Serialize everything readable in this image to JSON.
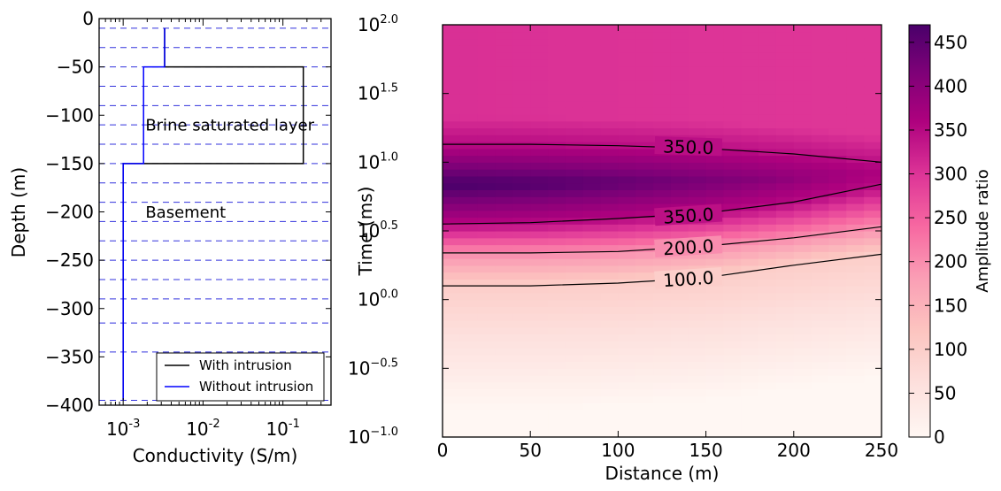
{
  "chart_data": [
    {
      "type": "line",
      "xlabel": "Conductivity (S/m)",
      "ylabel": "Depth (m)",
      "xscale": "log",
      "xlim": [
        0.0005,
        0.4
      ],
      "ylim": [
        -400,
        0
      ],
      "x_ticks": [
        {
          "value": 0.001,
          "base": "10",
          "exp": "-3"
        },
        {
          "value": 0.01,
          "base": "10",
          "exp": "-2"
        },
        {
          "value": 0.1,
          "base": "10",
          "exp": "-1"
        }
      ],
      "y_ticks": [
        0,
        -50,
        -100,
        -150,
        -200,
        -250,
        -300,
        -350,
        -400
      ],
      "y_tick_labels": [
        "0",
        "−50",
        "−100",
        "−150",
        "−200",
        "−250",
        "−300",
        "−350",
        "−400"
      ],
      "layer_interfaces": [
        -10,
        -30,
        -50,
        -70,
        -90,
        -110,
        -130,
        -150,
        -170,
        -190,
        -210,
        -230,
        -250,
        -270,
        -290,
        -315,
        -345,
        -395
      ],
      "annotations": [
        {
          "text": "Brine saturated layer",
          "x": 0.0019,
          "y": -105
        },
        {
          "text": "Basement",
          "x": 0.0019,
          "y": -195
        }
      ],
      "legend_position": "lower-right",
      "series": [
        {
          "name": "With intrusion",
          "color": "#000000",
          "x": [
            0.0033,
            0.0033,
            0.0033,
            0.18,
            0.18,
            0.001,
            0.001,
            0.001
          ],
          "y": [
            -10,
            -50,
            -50,
            -50,
            -150,
            -150,
            -150,
            -395
          ]
        },
        {
          "name": "Without intrusion",
          "color": "#0000ff",
          "x": [
            0.0033,
            0.0033,
            0.0018,
            0.0018,
            0.001,
            0.001
          ],
          "y": [
            -10,
            -50,
            -50,
            -150,
            -150,
            -395
          ]
        }
      ]
    },
    {
      "type": "heatmap",
      "xlabel": "Distance (m)",
      "ylabel": "Time (ms)",
      "colorbar_label": "Amplitude ratio",
      "colormap": "RdPu",
      "xlim": [
        0,
        250
      ],
      "ylim_log10": [
        -1.0,
        2.0
      ],
      "x_ticks": [
        0,
        50,
        100,
        150,
        200,
        250
      ],
      "y_ticks": [
        {
          "value": -1.0,
          "base": "10",
          "exp": "−1.0"
        },
        {
          "value": -0.5,
          "base": "10",
          "exp": "−0.5"
        },
        {
          "value": 0.0,
          "base": "10",
          "exp": "0.0"
        },
        {
          "value": 0.5,
          "base": "10",
          "exp": "0.5"
        },
        {
          "value": 1.0,
          "base": "10",
          "exp": "1.0"
        },
        {
          "value": 1.5,
          "base": "10",
          "exp": "1.5"
        },
        {
          "value": 2.0,
          "base": "10",
          "exp": "2.0"
        }
      ],
      "colorbar_range": [
        0,
        470
      ],
      "colorbar_ticks": [
        0,
        50,
        100,
        150,
        200,
        250,
        300,
        350,
        400,
        450
      ],
      "colormap_stops": [
        {
          "v": 0,
          "color": "#fff7f3"
        },
        {
          "v": 60,
          "color": "#fde0dd"
        },
        {
          "v": 120,
          "color": "#fcc5c0"
        },
        {
          "v": 180,
          "color": "#fa9fb5"
        },
        {
          "v": 240,
          "color": "#f768a1"
        },
        {
          "v": 300,
          "color": "#dd3497"
        },
        {
          "v": 360,
          "color": "#ae017e"
        },
        {
          "v": 420,
          "color": "#7a0177"
        },
        {
          "v": 470,
          "color": "#49006a"
        }
      ],
      "contours": [
        {
          "label": "350.0",
          "label_at": [
            140,
            1.11
          ],
          "points": [
            [
              0,
              1.13
            ],
            [
              50,
              1.13
            ],
            [
              100,
              1.12
            ],
            [
              150,
              1.1
            ],
            [
              200,
              1.06
            ],
            [
              250,
              1.0
            ]
          ]
        },
        {
          "label": "350.0",
          "label_at": [
            140,
            0.61
          ],
          "points": [
            [
              0,
              0.55
            ],
            [
              50,
              0.56
            ],
            [
              100,
              0.59
            ],
            [
              150,
              0.63
            ],
            [
              200,
              0.71
            ],
            [
              250,
              0.84
            ]
          ]
        },
        {
          "label": "200.0",
          "label_at": [
            140,
            0.38
          ],
          "points": [
            [
              0,
              0.34
            ],
            [
              50,
              0.34
            ],
            [
              100,
              0.35
            ],
            [
              150,
              0.39
            ],
            [
              200,
              0.45
            ],
            [
              250,
              0.53
            ]
          ]
        },
        {
          "label": "100.0",
          "label_at": [
            140,
            0.15
          ],
          "points": [
            [
              0,
              0.1
            ],
            [
              50,
              0.1
            ],
            [
              100,
              0.12
            ],
            [
              150,
              0.16
            ],
            [
              200,
              0.25
            ],
            [
              250,
              0.33
            ]
          ]
        }
      ]
    }
  ]
}
